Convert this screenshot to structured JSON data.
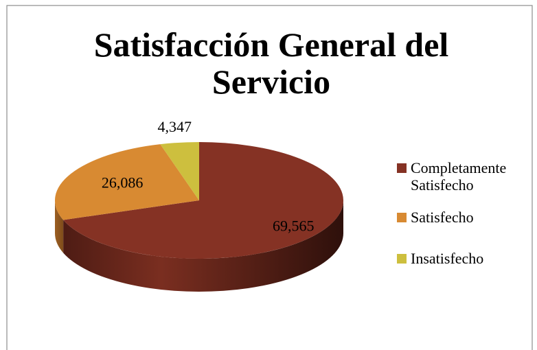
{
  "chart_data": {
    "type": "pie3d",
    "title": "Satisfacción General del Servicio",
    "categories": [
      "Completamente Satisfecho",
      "Satisfecho",
      "Insatisfecho"
    ],
    "values": [
      69.565,
      26.086,
      4.347
    ],
    "value_labels": [
      "69,565",
      "26,086",
      "4,347"
    ],
    "colors": [
      "#853224",
      "#d88a32",
      "#cdbf3e"
    ],
    "legend": "right"
  }
}
